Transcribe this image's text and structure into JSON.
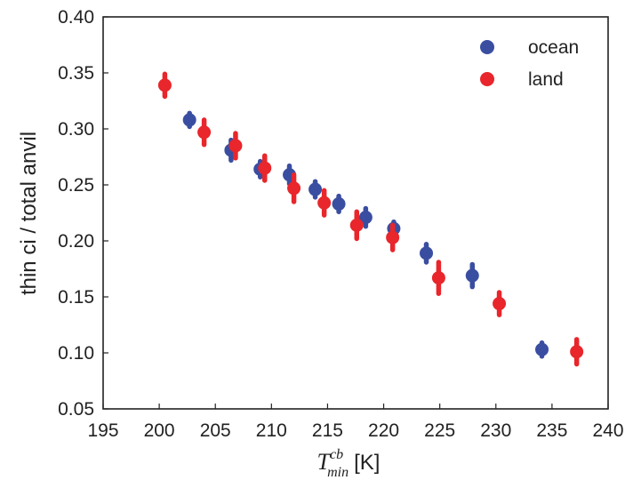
{
  "chart_data": {
    "type": "scatter",
    "title": "",
    "xlabel": {
      "symbol": "T",
      "superscript": "cb",
      "subscript": "min",
      "unit": "[K]"
    },
    "ylabel": "thin ci / total anvil",
    "xlim": [
      195,
      240
    ],
    "ylim": [
      0.05,
      0.4
    ],
    "xticks": [
      195,
      200,
      205,
      210,
      215,
      220,
      225,
      230,
      235,
      240
    ],
    "yticks": [
      0.05,
      0.1,
      0.15,
      0.2,
      0.25,
      0.3,
      0.35,
      0.4
    ],
    "xtick_labels": [
      "195",
      "200",
      "205",
      "210",
      "215",
      "220",
      "225",
      "230",
      "235",
      "240"
    ],
    "ytick_labels": [
      "0.05",
      "0.10",
      "0.15",
      "0.20",
      "0.25",
      "0.30",
      "0.35",
      "0.40"
    ],
    "grid": false,
    "legend": "top-right",
    "error_bars": true,
    "series": [
      {
        "name": "ocean",
        "color": "#3a4ea1",
        "points": [
          {
            "x": 202.7,
            "y": 0.308,
            "err": 0.006
          },
          {
            "x": 206.4,
            "y": 0.281,
            "err": 0.009
          },
          {
            "x": 209.0,
            "y": 0.264,
            "err": 0.007
          },
          {
            "x": 211.6,
            "y": 0.259,
            "err": 0.008
          },
          {
            "x": 213.9,
            "y": 0.246,
            "err": 0.007
          },
          {
            "x": 216.0,
            "y": 0.233,
            "err": 0.007
          },
          {
            "x": 218.4,
            "y": 0.221,
            "err": 0.008
          },
          {
            "x": 220.9,
            "y": 0.211,
            "err": 0.006
          },
          {
            "x": 223.8,
            "y": 0.189,
            "err": 0.008
          },
          {
            "x": 227.9,
            "y": 0.169,
            "err": 0.01
          },
          {
            "x": 234.1,
            "y": 0.103,
            "err": 0.006
          }
        ]
      },
      {
        "name": "land",
        "color": "#e8262b",
        "points": [
          {
            "x": 200.5,
            "y": 0.339,
            "err": 0.01
          },
          {
            "x": 204.0,
            "y": 0.297,
            "err": 0.011
          },
          {
            "x": 206.8,
            "y": 0.285,
            "err": 0.011
          },
          {
            "x": 209.4,
            "y": 0.265,
            "err": 0.011
          },
          {
            "x": 212.0,
            "y": 0.247,
            "err": 0.012
          },
          {
            "x": 214.7,
            "y": 0.234,
            "err": 0.011
          },
          {
            "x": 217.6,
            "y": 0.214,
            "err": 0.012
          },
          {
            "x": 220.8,
            "y": 0.203,
            "err": 0.011
          },
          {
            "x": 224.9,
            "y": 0.167,
            "err": 0.014
          },
          {
            "x": 230.3,
            "y": 0.144,
            "err": 0.01
          },
          {
            "x": 237.2,
            "y": 0.101,
            "err": 0.011
          }
        ]
      }
    ]
  }
}
